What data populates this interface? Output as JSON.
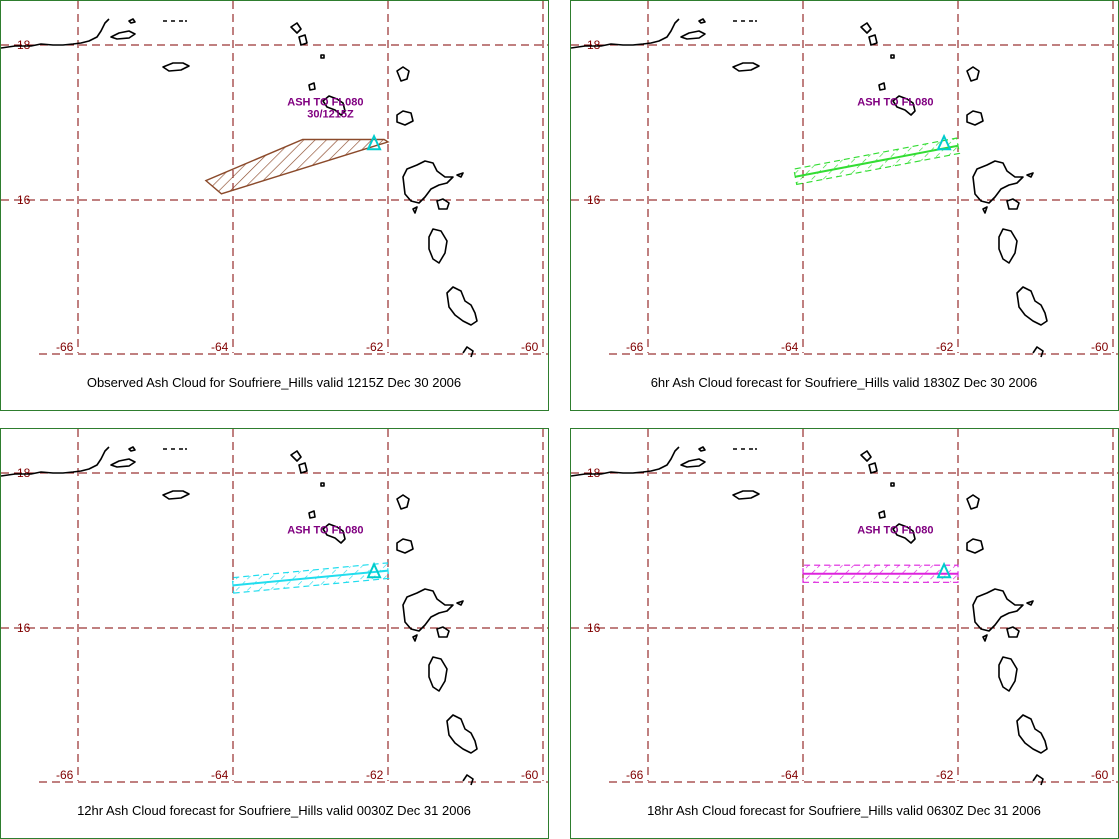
{
  "grid": {
    "lat_labels": [
      "18",
      "16"
    ],
    "lon_labels": [
      "-66",
      "-64",
      "-62",
      "-60"
    ]
  },
  "panels": [
    {
      "ash_label": "ASH TO FL080",
      "ash_time": "30/1215Z",
      "caption": "Observed Ash Cloud for Soufriere_Hills valid 1215Z Dec 30 2006",
      "color": "#8b4a2b",
      "style": "polygon",
      "polygon": [
        [
          -64.35,
          16.25
        ],
        [
          -64.15,
          16.08
        ],
        [
          -62.0,
          16.75
        ],
        [
          -62.05,
          16.78
        ],
        [
          -63.1,
          16.78
        ]
      ]
    },
    {
      "ash_label": "ASH TO FL080",
      "ash_time": "",
      "caption": "6hr Ash Cloud forecast for Soufriere_Hills valid 1830Z Dec 30 2006",
      "color": "#33dd33",
      "style": "band",
      "band": {
        "start": [
          -64.1,
          16.3
        ],
        "end": [
          -62.0,
          16.7
        ],
        "half_width": 0.1
      }
    },
    {
      "ash_label": "ASH TO FL080",
      "ash_time": "",
      "caption": "12hr Ash Cloud forecast for Soufriere_Hills valid 0030Z Dec 31 2006",
      "color": "#22ddee",
      "style": "band",
      "band": {
        "start": [
          -64.0,
          16.55
        ],
        "end": [
          -62.0,
          16.74
        ],
        "half_width": 0.1
      }
    },
    {
      "ash_label": "ASH TO FL080",
      "ash_time": "",
      "caption": "18hr Ash Cloud forecast for Soufriere_Hills valid 0630Z Dec 31 2006",
      "color": "#dd22dd",
      "style": "band",
      "band": {
        "start": [
          -64.0,
          16.7
        ],
        "end": [
          -62.0,
          16.7
        ],
        "half_width": 0.11
      }
    }
  ],
  "volcano": {
    "lon": -62.18,
    "lat": 16.72
  },
  "volcano_color": "#00cccc"
}
